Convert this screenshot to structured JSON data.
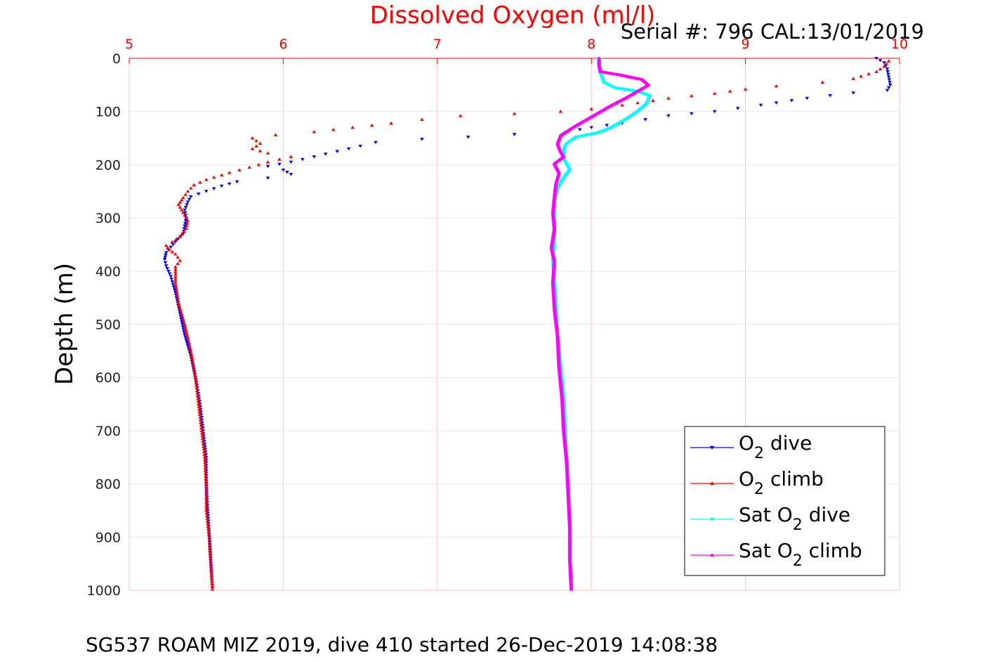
{
  "chart_data": {
    "type": "scatter",
    "title": "Dissolved Oxygen (ml/l)",
    "subtitle": "Serial #: 796  CAL:13/01/2019",
    "caption": "SG537 ROAM MIZ 2019, dive 410 started 26-Dec-2019 14:08:38",
    "xlabel": "",
    "ylabel": "Depth (m)",
    "xlim": [
      5,
      10
    ],
    "ylim": [
      0,
      1000
    ],
    "y_reversed": true,
    "x_axis_position": "top",
    "x_ticks": [
      "5",
      "6",
      "7",
      "8",
      "9",
      "10"
    ],
    "y_ticks": [
      "0",
      "100",
      "200",
      "300",
      "400",
      "500",
      "600",
      "700",
      "800",
      "900",
      "1000"
    ],
    "grid": true,
    "legend_position": "bottom-right",
    "colors": {
      "title": "#ff0000",
      "x_ticks": "#ff0000",
      "grid": "#f5c6c6",
      "axis": "#ff0000"
    },
    "legend": [
      {
        "name": "O",
        "sub": "2",
        "suffix": " dive"
      },
      {
        "name": "O",
        "sub": "2",
        "suffix": " climb"
      },
      {
        "name": "Sat O",
        "sub": "2",
        "suffix": " dive"
      },
      {
        "name": "Sat O",
        "sub": "2",
        "suffix": " climb"
      }
    ],
    "series": [
      {
        "name": "O2 dive",
        "color": "#0000ff",
        "marker": "triangle-down",
        "points": [
          [
            9.85,
            0
          ],
          [
            9.9,
            8
          ],
          [
            9.92,
            20
          ],
          [
            9.93,
            35
          ],
          [
            9.94,
            50
          ],
          [
            9.92,
            60
          ],
          [
            9.7,
            65
          ],
          [
            9.4,
            75
          ],
          [
            9.1,
            88
          ],
          [
            8.8,
            100
          ],
          [
            8.5,
            108
          ],
          [
            8.35,
            115
          ],
          [
            8.2,
            122
          ],
          [
            8.0,
            130
          ],
          [
            7.85,
            138
          ],
          [
            7.5,
            143
          ],
          [
            7.2,
            148
          ],
          [
            6.9,
            152
          ],
          [
            6.6,
            158
          ],
          [
            6.5,
            165
          ],
          [
            6.35,
            175
          ],
          [
            6.2,
            185
          ],
          [
            6.05,
            195
          ],
          [
            5.9,
            203
          ],
          [
            6.0,
            210
          ],
          [
            6.05,
            218
          ],
          [
            5.9,
            225
          ],
          [
            5.7,
            232
          ],
          [
            5.6,
            240
          ],
          [
            5.5,
            250
          ],
          [
            5.4,
            260
          ],
          [
            5.38,
            270
          ],
          [
            5.36,
            285
          ],
          [
            5.37,
            300
          ],
          [
            5.36,
            315
          ],
          [
            5.35,
            330
          ],
          [
            5.3,
            345
          ],
          [
            5.27,
            355
          ],
          [
            5.24,
            365
          ],
          [
            5.23,
            378
          ],
          [
            5.24,
            390
          ],
          [
            5.27,
            410
          ],
          [
            5.3,
            440
          ],
          [
            5.33,
            480
          ],
          [
            5.36,
            520
          ],
          [
            5.4,
            560
          ],
          [
            5.43,
            600
          ],
          [
            5.46,
            650
          ],
          [
            5.48,
            700
          ],
          [
            5.5,
            750
          ],
          [
            5.5,
            800
          ],
          [
            5.51,
            850
          ],
          [
            5.52,
            900
          ],
          [
            5.53,
            950
          ],
          [
            5.54,
            995
          ]
        ]
      },
      {
        "name": "O2 climb",
        "color": "#ff0000",
        "marker": "triangle-up",
        "points": [
          [
            9.93,
            5
          ],
          [
            9.9,
            15
          ],
          [
            9.85,
            25
          ],
          [
            9.7,
            38
          ],
          [
            9.5,
            45
          ],
          [
            9.2,
            52
          ],
          [
            9.0,
            58
          ],
          [
            8.8,
            66
          ],
          [
            8.5,
            75
          ],
          [
            8.2,
            88
          ],
          [
            8.0,
            95
          ],
          [
            7.8,
            100
          ],
          [
            7.5,
            104
          ],
          [
            7.15,
            108
          ],
          [
            6.9,
            115
          ],
          [
            6.7,
            122
          ],
          [
            6.45,
            130
          ],
          [
            6.2,
            138
          ],
          [
            5.95,
            144
          ],
          [
            5.8,
            150
          ],
          [
            5.85,
            160
          ],
          [
            5.8,
            170
          ],
          [
            5.9,
            178
          ],
          [
            6.05,
            185
          ],
          [
            5.9,
            195
          ],
          [
            5.78,
            205
          ],
          [
            5.65,
            215
          ],
          [
            5.5,
            228
          ],
          [
            5.42,
            238
          ],
          [
            5.38,
            250
          ],
          [
            5.35,
            262
          ],
          [
            5.32,
            275
          ],
          [
            5.35,
            290
          ],
          [
            5.38,
            305
          ],
          [
            5.37,
            320
          ],
          [
            5.33,
            335
          ],
          [
            5.28,
            345
          ],
          [
            5.24,
            352
          ],
          [
            5.26,
            360
          ],
          [
            5.3,
            368
          ],
          [
            5.33,
            380
          ],
          [
            5.3,
            392
          ],
          [
            5.3,
            420
          ],
          [
            5.32,
            460
          ],
          [
            5.36,
            500
          ],
          [
            5.4,
            550
          ],
          [
            5.43,
            600
          ],
          [
            5.45,
            650
          ],
          [
            5.47,
            700
          ],
          [
            5.49,
            750
          ],
          [
            5.5,
            800
          ],
          [
            5.5,
            850
          ],
          [
            5.52,
            900
          ],
          [
            5.53,
            950
          ],
          [
            5.54,
            998
          ]
        ]
      },
      {
        "name": "Sat O2 dive",
        "color": "#00ffff",
        "marker": "triangle-down",
        "points": [
          [
            8.05,
            0
          ],
          [
            8.05,
            15
          ],
          [
            8.06,
            30
          ],
          [
            8.08,
            45
          ],
          [
            8.15,
            55
          ],
          [
            8.3,
            62
          ],
          [
            8.38,
            70
          ],
          [
            8.36,
            85
          ],
          [
            8.3,
            100
          ],
          [
            8.22,
            115
          ],
          [
            8.13,
            130
          ],
          [
            8.04,
            140
          ],
          [
            7.9,
            148
          ],
          [
            7.84,
            160
          ],
          [
            7.82,
            172
          ],
          [
            7.82,
            190
          ],
          [
            7.86,
            210
          ],
          [
            7.82,
            225
          ],
          [
            7.78,
            245
          ],
          [
            7.76,
            270
          ],
          [
            7.76,
            300
          ],
          [
            7.76,
            340
          ],
          [
            7.75,
            380
          ],
          [
            7.76,
            420
          ],
          [
            7.77,
            470
          ],
          [
            7.78,
            520
          ],
          [
            7.8,
            580
          ],
          [
            7.82,
            640
          ],
          [
            7.83,
            700
          ],
          [
            7.84,
            760
          ],
          [
            7.85,
            820
          ],
          [
            7.86,
            880
          ],
          [
            7.86,
            940
          ],
          [
            7.87,
            998
          ]
        ]
      },
      {
        "name": "Sat O2 climb",
        "color": "#ff00ff",
        "marker": "triangle-up",
        "points": [
          [
            8.05,
            0
          ],
          [
            8.05,
            12
          ],
          [
            8.06,
            25
          ],
          [
            8.2,
            32
          ],
          [
            8.33,
            40
          ],
          [
            8.37,
            50
          ],
          [
            8.3,
            62
          ],
          [
            8.22,
            75
          ],
          [
            8.12,
            90
          ],
          [
            8.0,
            110
          ],
          [
            7.88,
            130
          ],
          [
            7.8,
            145
          ],
          [
            7.78,
            160
          ],
          [
            7.8,
            175
          ],
          [
            7.82,
            185
          ],
          [
            7.76,
            198
          ],
          [
            7.79,
            215
          ],
          [
            7.77,
            235
          ],
          [
            7.76,
            260
          ],
          [
            7.75,
            290
          ],
          [
            7.76,
            320
          ],
          [
            7.74,
            355
          ],
          [
            7.76,
            380
          ],
          [
            7.75,
            420
          ],
          [
            7.76,
            470
          ],
          [
            7.78,
            520
          ],
          [
            7.79,
            580
          ],
          [
            7.81,
            640
          ],
          [
            7.82,
            700
          ],
          [
            7.84,
            760
          ],
          [
            7.85,
            820
          ],
          [
            7.86,
            880
          ],
          [
            7.86,
            940
          ],
          [
            7.87,
            998
          ]
        ]
      }
    ]
  }
}
